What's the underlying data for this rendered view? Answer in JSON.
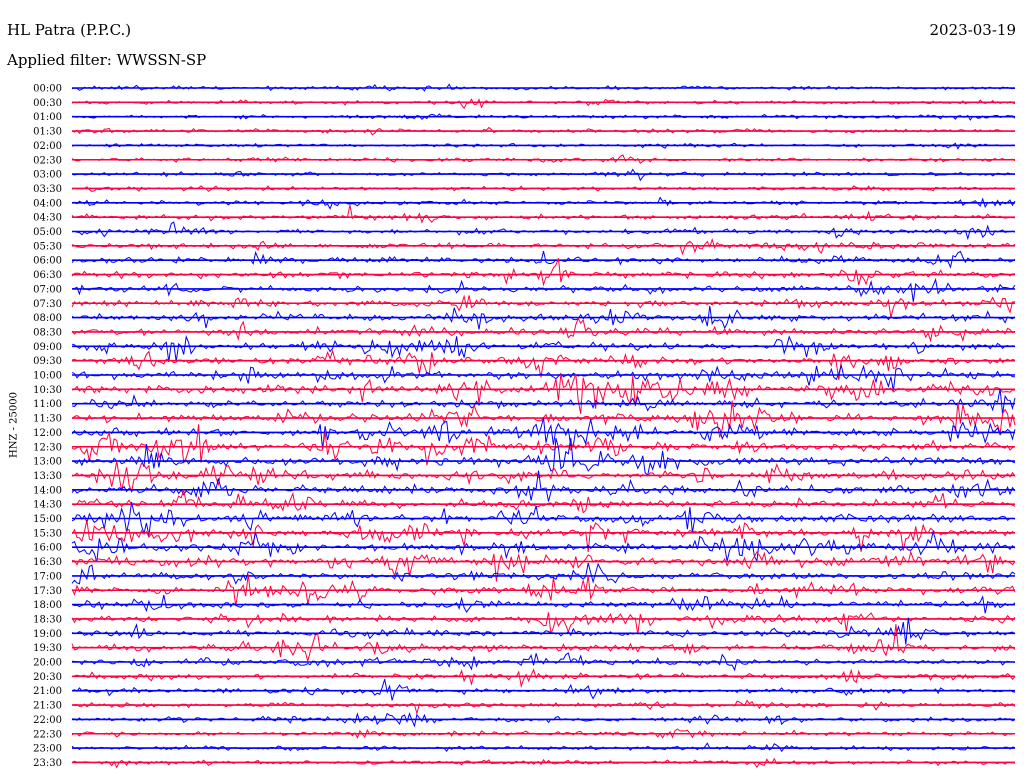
{
  "header": {
    "station": "HL Patra (P.P.C.)",
    "date": "2023-03-19",
    "filter": "Applied filter: WWSSN-SP"
  },
  "channel_label": "HNZ - 25000",
  "chart_data": {
    "type": "line",
    "plot_kind": "helicorder",
    "title": "HL Patra (P.P.C.)",
    "date": "2023-03-19",
    "filter": "WWSSN-SP",
    "channel": "HNZ - 25000",
    "row_interval_minutes": 30,
    "row_labels": [
      "00:00",
      "00:30",
      "01:00",
      "01:30",
      "02:00",
      "02:30",
      "03:00",
      "03:30",
      "04:00",
      "04:30",
      "05:00",
      "05:30",
      "06:00",
      "06:30",
      "07:00",
      "07:30",
      "08:00",
      "08:30",
      "09:00",
      "09:30",
      "10:00",
      "10:30",
      "11:00",
      "11:30",
      "12:00",
      "12:30",
      "13:00",
      "13:30",
      "14:00",
      "14:30",
      "15:00",
      "15:30",
      "16:00",
      "16:30",
      "17:00",
      "17:30",
      "18:00",
      "18:30",
      "19:00",
      "19:30",
      "20:00",
      "20:30",
      "21:00",
      "21:30",
      "22:00",
      "22:30",
      "23:00",
      "23:30"
    ],
    "relative_activity": [
      0.18,
      0.16,
      0.16,
      0.18,
      0.14,
      0.18,
      0.2,
      0.24,
      0.3,
      0.4,
      0.4,
      0.45,
      0.5,
      0.55,
      0.6,
      0.62,
      0.65,
      0.7,
      0.72,
      0.75,
      0.78,
      0.8,
      0.8,
      0.82,
      0.82,
      0.82,
      0.82,
      0.82,
      0.8,
      0.8,
      0.8,
      0.8,
      0.8,
      0.78,
      0.75,
      0.72,
      0.7,
      0.65,
      0.6,
      0.55,
      0.5,
      0.45,
      0.4,
      0.38,
      0.35,
      0.3,
      0.28,
      0.24
    ],
    "colors": [
      "#0000ff",
      "#ff0040"
    ],
    "legend": "none",
    "grid": false
  }
}
